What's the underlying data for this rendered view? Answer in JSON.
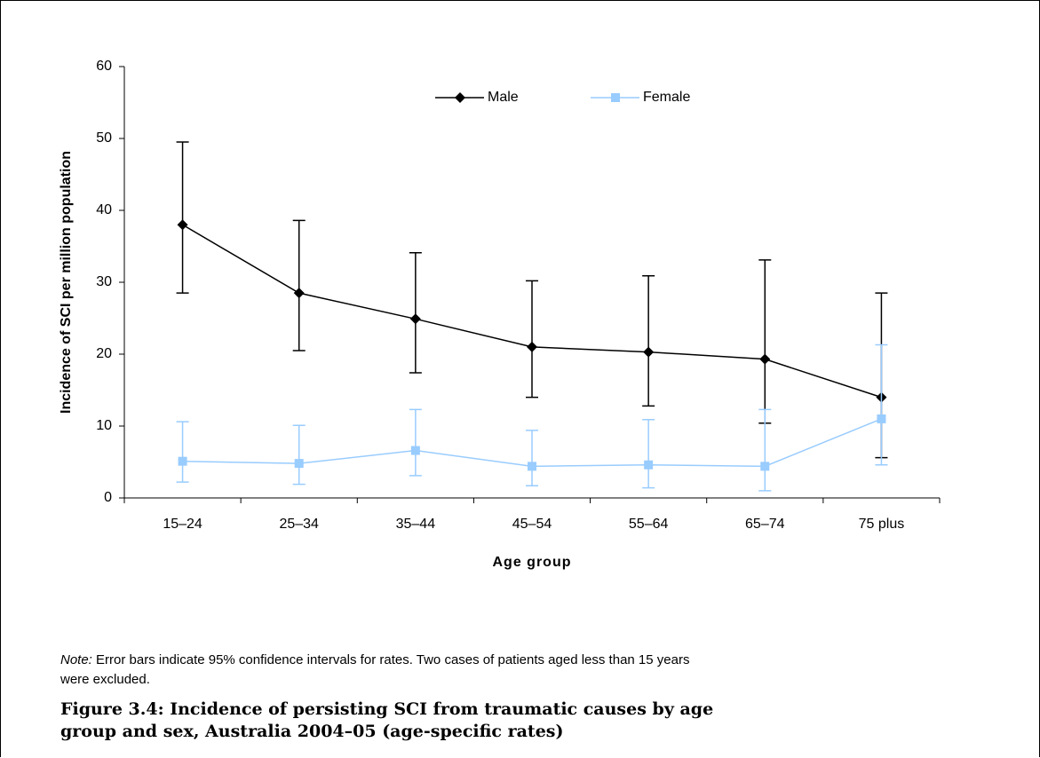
{
  "chart_data": {
    "type": "line",
    "title": "Figure 3.4: Incidence of persisting SCI from traumatic causes by age group and sex, Australia 2004–05 (age-specific rates)",
    "note_label": "Note:",
    "note": "Error bars indicate 95% confidence intervals for rates. Two cases of patients aged less than 15 years were excluded.",
    "x_label": "Age group",
    "y_label": "Incidence of SCI per million population",
    "categories": [
      "15–24",
      "25–34",
      "35–44",
      "45–54",
      "55–64",
      "65–74",
      "75 plus"
    ],
    "series": [
      {
        "name": "Male",
        "color": "#000000",
        "marker": "diamond",
        "values": [
          38.0,
          28.5,
          24.9,
          21.0,
          20.3,
          19.3,
          14.0
        ],
        "ci_low": [
          28.5,
          20.5,
          17.4,
          14.0,
          12.8,
          10.4,
          5.6
        ],
        "ci_high": [
          49.5,
          38.6,
          34.1,
          30.2,
          30.9,
          33.1,
          28.5
        ]
      },
      {
        "name": "Female",
        "color": "#99ccff",
        "marker": "square",
        "values": [
          5.1,
          4.8,
          6.6,
          4.4,
          4.6,
          4.4,
          11.0
        ],
        "ci_low": [
          2.2,
          1.9,
          3.1,
          1.7,
          1.4,
          1.0,
          4.6
        ],
        "ci_high": [
          10.6,
          10.1,
          12.3,
          9.4,
          10.9,
          12.3,
          21.3
        ]
      }
    ],
    "ylim": [
      0,
      60
    ],
    "yticks": [
      0,
      10,
      20,
      30,
      40,
      50,
      60
    ],
    "grid": false,
    "legend": "top"
  }
}
